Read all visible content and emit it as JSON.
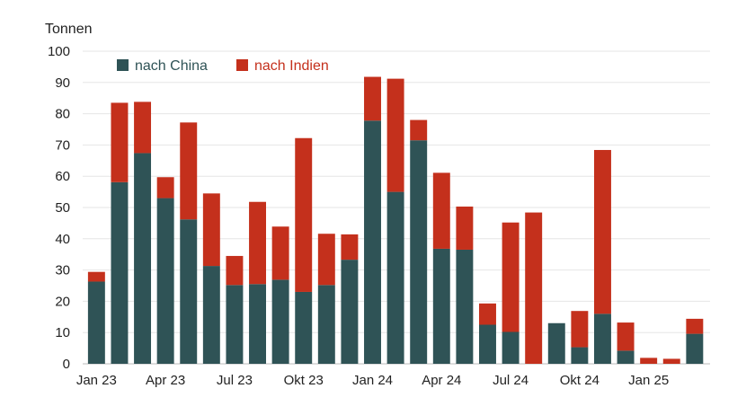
{
  "chart_data": {
    "type": "bar",
    "stacked": true,
    "ylabel": "Tonnen",
    "ylim": [
      0,
      100
    ],
    "yticks": [
      0,
      10,
      20,
      30,
      40,
      50,
      60,
      70,
      80,
      90,
      100
    ],
    "grid": true,
    "legend_placement": "top-left",
    "categories": [
      "Jan 23",
      "Feb 23",
      "Mär 23",
      "Apr 23",
      "Mai 23",
      "Jun 23",
      "Jul 23",
      "Aug 23",
      "Sep 23",
      "Okt 23",
      "Nov 23",
      "Dez 23",
      "Jan 24",
      "Feb 24",
      "Mär 24",
      "Apr 24",
      "Mai 24",
      "Jun 24",
      "Jul 24",
      "Aug 24",
      "Sep 24",
      "Okt 24",
      "Nov 24",
      "Dez 24",
      "Jan 25",
      "Feb 25",
      "Mär 25"
    ],
    "xtick_labels": [
      "Jan 23",
      "Apr 23",
      "Jul 23",
      "Okt 23",
      "Jan 24",
      "Apr 24",
      "Jul 24",
      "Okt 24",
      "Jan 25"
    ],
    "xtick_indices": [
      0,
      3,
      6,
      9,
      12,
      15,
      18,
      21,
      24
    ],
    "series": [
      {
        "name": "nach China",
        "color": "#2f5356",
        "values": [
          26.3,
          58.1,
          67.4,
          53.0,
          46.2,
          31.3,
          25.2,
          25.5,
          26.9,
          23.0,
          25.2,
          33.3,
          77.8,
          55.0,
          71.5,
          36.8,
          36.5,
          12.5,
          10.2,
          0,
          13.0,
          5.3,
          16.0,
          4.2,
          0,
          0,
          9.6
        ]
      },
      {
        "name": "nach Indien",
        "color": "#c4301c",
        "values": [
          3.1,
          25.4,
          16.4,
          6.7,
          31.0,
          23.2,
          9.3,
          26.3,
          17.0,
          49.2,
          16.4,
          8.1,
          14.0,
          36.2,
          6.5,
          24.3,
          13.8,
          6.8,
          35.0,
          48.4,
          0,
          11.6,
          52.4,
          9.0,
          1.9,
          1.6,
          4.8
        ]
      }
    ]
  }
}
